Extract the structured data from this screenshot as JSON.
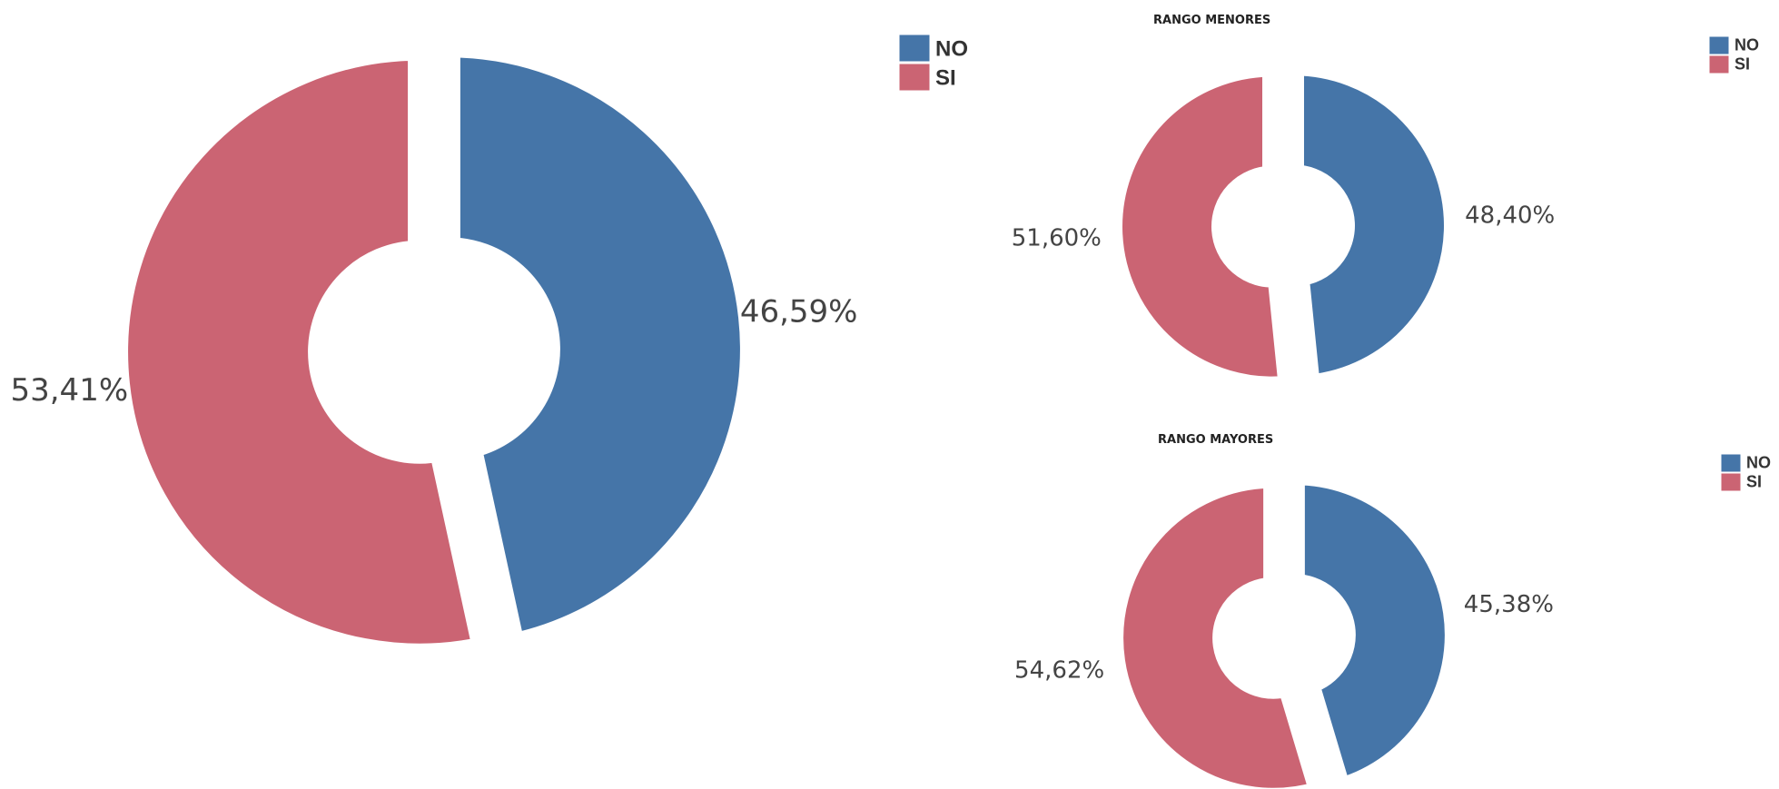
{
  "colors": {
    "NO": "#4575a8",
    "SI": "#cb6473",
    "separator": "#ffffff"
  },
  "chart_data": [
    {
      "type": "pie",
      "variant": "donut-exploded",
      "title": "",
      "legend": [
        "NO",
        "SI"
      ],
      "slices": [
        {
          "name": "NO",
          "value": 46.59,
          "label": "46,59%"
        },
        {
          "name": "SI",
          "value": 53.41,
          "label": "53,41%"
        }
      ]
    },
    {
      "type": "pie",
      "variant": "donut-exploded",
      "title": "RANGO MENORES",
      "legend": [
        "NO",
        "SI"
      ],
      "slices": [
        {
          "name": "NO",
          "value": 48.4,
          "label": "48,40%"
        },
        {
          "name": "SI",
          "value": 51.6,
          "label": "51,60%"
        }
      ]
    },
    {
      "type": "pie",
      "variant": "donut-exploded",
      "title": "RANGO MAYORES",
      "legend": [
        "NO",
        "SI"
      ],
      "slices": [
        {
          "name": "NO",
          "value": 45.38,
          "label": "45,38%"
        },
        {
          "name": "SI",
          "value": 54.62,
          "label": "54,62%"
        }
      ]
    }
  ]
}
